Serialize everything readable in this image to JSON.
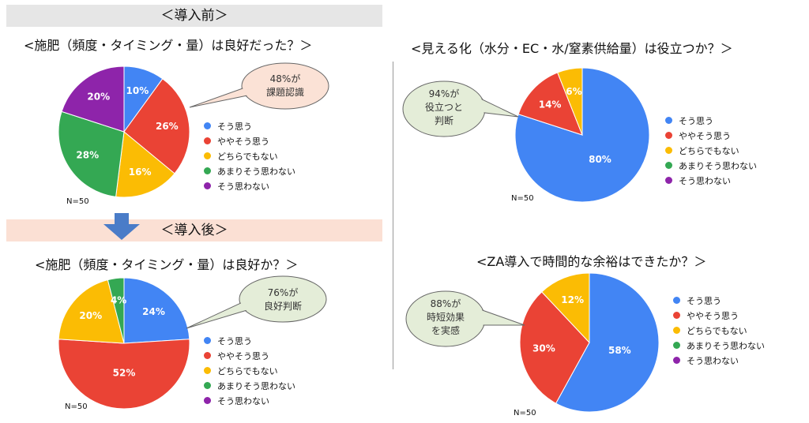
{
  "labels": {
    "before_band": "＜導入前＞",
    "after_band": "＜導入後＞",
    "n_label": "N=50",
    "n_label_cut": "N=50"
  },
  "colors": {
    "blue": "#4285f4",
    "red": "#ea4335",
    "yellow": "#fbbc04",
    "green": "#34a853",
    "purple": "#8e24aa"
  },
  "legend": [
    "そう思う",
    "ややそう思う",
    "どちらでもない",
    "あまりそう思わない",
    "そう思わない"
  ],
  "chart_data": [
    {
      "type": "pie",
      "title": "<施肥（頻度・タイミング・量）は良好だった？＞",
      "categories": [
        "そう思う",
        "ややそう思う",
        "どちらでもない",
        "あまりそう思わない",
        "そう思わない"
      ],
      "values": [
        10,
        26,
        16,
        28,
        20
      ],
      "data_labels": [
        "10%",
        "26%",
        "16%",
        "28%",
        "20%"
      ],
      "callout": [
        "48%が",
        "課題認識"
      ],
      "callout_style": "peach"
    },
    {
      "type": "pie",
      "title": "<施肥（頻度・タイミング・量）は良好か？＞",
      "categories": [
        "そう思う",
        "ややそう思う",
        "どちらでもない",
        "あまりそう思わない",
        "そう思わない"
      ],
      "values": [
        24,
        52,
        20,
        4,
        0
      ],
      "data_labels": [
        "24%",
        "52%",
        "20%",
        "4%",
        ""
      ],
      "callout": [
        "76%が",
        "良好判断"
      ],
      "callout_style": "green"
    },
    {
      "type": "pie",
      "title": "<見える化（水分・EC・水/窒素供給量）は役立つか？＞",
      "categories": [
        "そう思う",
        "ややそう思う",
        "どちらでもない",
        "あまりそう思わない",
        "そう思わない"
      ],
      "values": [
        80,
        14,
        6,
        0,
        0
      ],
      "data_labels": [
        "80%",
        "14%",
        "6%",
        "",
        ""
      ],
      "callout": [
        "94%が",
        "役立つと",
        "判断"
      ],
      "callout_style": "green"
    },
    {
      "type": "pie",
      "title": "<ZA導入で時間的な余裕はできたか？＞",
      "categories": [
        "そう思う",
        "ややそう思う",
        "どちらでもない",
        "あまりそう思わない",
        "そう思わない"
      ],
      "values": [
        58,
        30,
        12,
        0,
        0
      ],
      "data_labels": [
        "58%",
        "30%",
        "12%",
        "",
        ""
      ],
      "callout": [
        "88%が",
        "時短効果",
        "を実感"
      ],
      "callout_style": "green"
    }
  ]
}
